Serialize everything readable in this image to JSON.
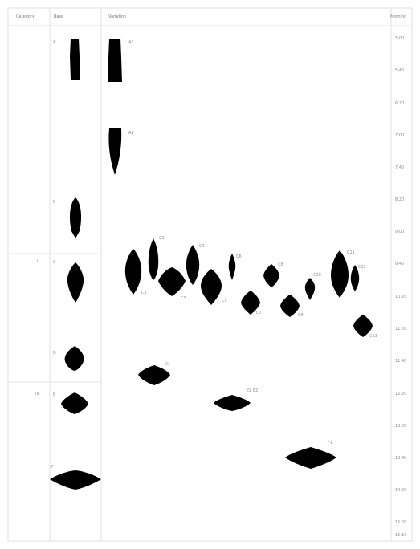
{
  "headers": {
    "category": "Category",
    "base": "Base",
    "variant": "Variation",
    "time": "Morning"
  },
  "categories": [
    "I",
    "II",
    "III"
  ],
  "time_labels": [
    "5:00",
    "5:40",
    "6:20",
    "7:00",
    "7:40",
    "8:20",
    "9:00",
    "9:40",
    "10:20",
    "11:00",
    "11:40",
    "12:20",
    "13:00",
    "13:40",
    "14:20",
    "15:00",
    "15:10"
  ],
  "base_labels": [
    "A",
    "B",
    "C",
    "D",
    "E",
    "F"
  ],
  "variant_labels": [
    "A1",
    "A2",
    "C1",
    "C2",
    "C3",
    "C4",
    "C5",
    "C6",
    "C7",
    "C8",
    "C9",
    "C10",
    "C11",
    "C12",
    "C13",
    "D1",
    "E1",
    "E2",
    "F1"
  ],
  "style": {
    "glyph_color": "#000000",
    "line_color": "#e0e0e0"
  }
}
